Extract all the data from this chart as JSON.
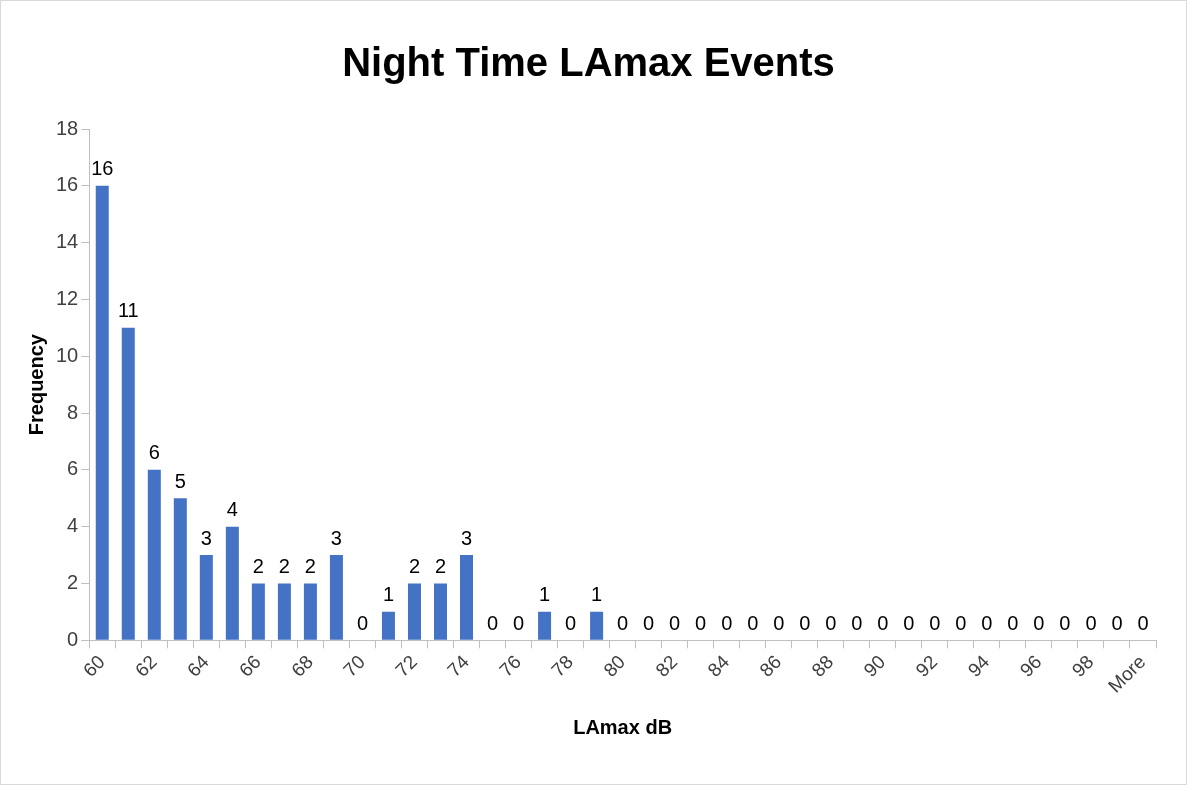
{
  "chart_data": {
    "type": "bar",
    "title": "Night Time LAmax Events",
    "xlabel": "LAmax dB",
    "ylabel": "Frequency",
    "categories": [
      "60",
      null,
      "62",
      null,
      "64",
      null,
      "66",
      null,
      "68",
      null,
      "70",
      null,
      "72",
      null,
      "74",
      null,
      "76",
      null,
      "78",
      null,
      "80",
      null,
      "82",
      null,
      "84",
      null,
      "86",
      null,
      "88",
      null,
      "90",
      null,
      "92",
      null,
      "94",
      null,
      "96",
      null,
      "98",
      null,
      "More"
    ],
    "values": [
      16,
      11,
      6,
      5,
      3,
      4,
      2,
      2,
      2,
      3,
      0,
      1,
      2,
      2,
      3,
      0,
      0,
      1,
      0,
      1,
      0,
      0,
      0,
      0,
      0,
      0,
      0,
      0,
      0,
      0,
      0,
      0,
      0,
      0,
      0,
      0,
      0,
      0,
      0,
      0,
      0
    ],
    "color": "#4472c4",
    "ylim": [
      0,
      18
    ],
    "yticks": [
      0,
      2,
      4,
      6,
      8,
      10,
      12,
      14,
      16,
      18
    ],
    "data_labels": true
  }
}
